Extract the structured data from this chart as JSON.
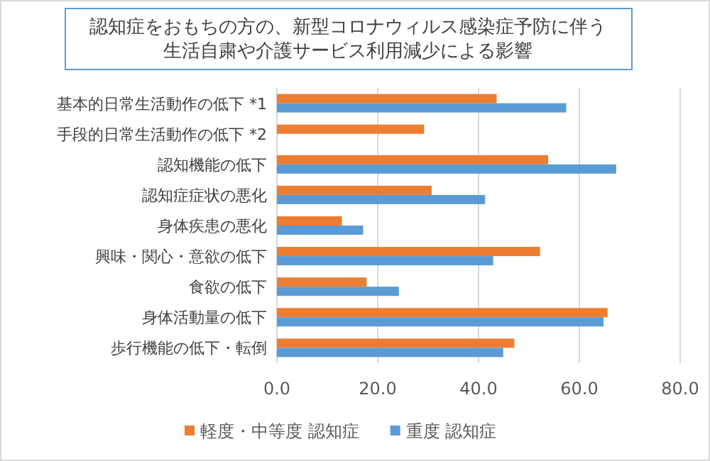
{
  "chart_data": {
    "type": "bar",
    "orientation": "horizontal",
    "title": "認知症をおもちの方の、新型コロナウィルス感染症予防に伴う生活自粛や介護サービス利用減少による影響",
    "categories": [
      "基本的日常生活動作の低下 *1",
      "手段的日常生活動作の低下 *2",
      "認知機能の低下",
      "認知症症状の悪化",
      "身体疾患の悪化",
      "興味・関心・意欲の低下",
      "食欲の低下",
      "身体活動量の低下",
      "歩行機能の低下・転倒"
    ],
    "series": [
      {
        "name": "軽度・中等度 認知症",
        "color": "#ed7d31",
        "values": [
          43.6,
          29.2,
          53.8,
          30.7,
          12.9,
          52.2,
          17.8,
          65.6,
          47.1
        ]
      },
      {
        "name": "重度 認知症",
        "color": "#5b9bd5",
        "values": [
          57.4,
          null,
          67.3,
          41.3,
          17.1,
          42.9,
          24.2,
          64.8,
          44.9
        ]
      }
    ],
    "xlim": [
      0,
      80
    ],
    "xticks": [
      {
        "value": 0,
        "label": "0.0"
      },
      {
        "value": 20,
        "label": "20.0"
      },
      {
        "value": 40,
        "label": "40.0"
      },
      {
        "value": 60,
        "label": "60.0"
      },
      {
        "value": 80,
        "label": "80.0"
      }
    ],
    "grid": "x",
    "legend": "bottom"
  }
}
